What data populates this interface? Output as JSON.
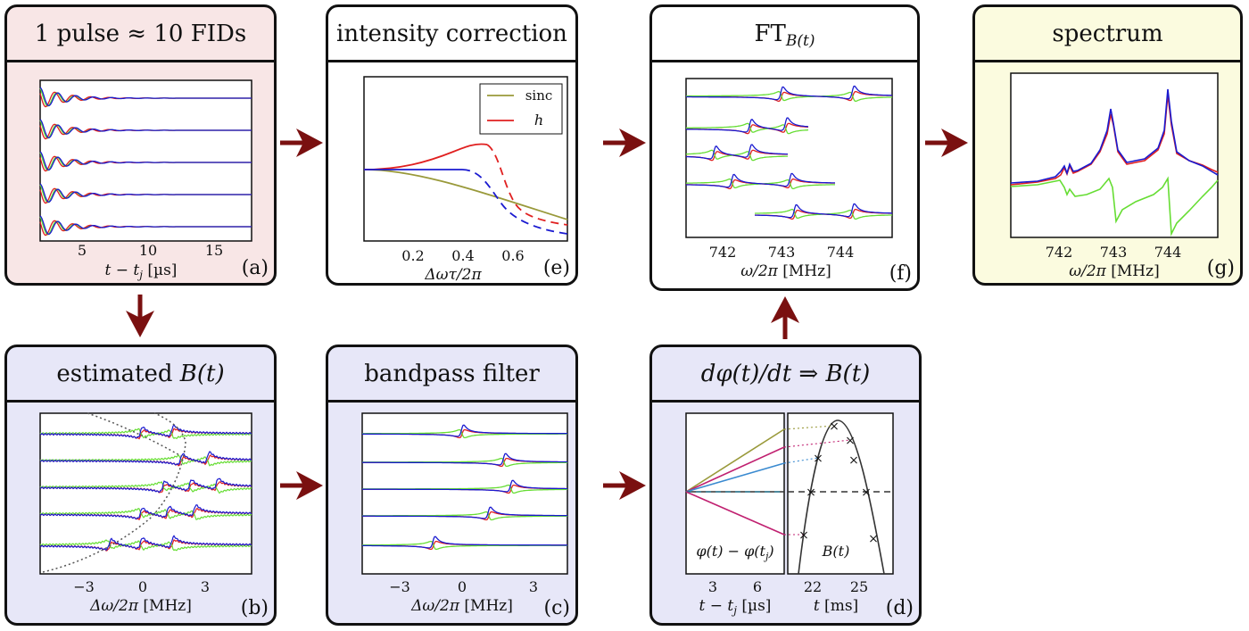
{
  "panels": {
    "a": {
      "title": "1 pulse ≈ 10 FIDs",
      "tag": "(a)",
      "xlabel": "t − t",
      "xlabel_sub": "j",
      "xlabel_unit": " [µs]",
      "ticks": [
        "5",
        "10",
        "15"
      ]
    },
    "e": {
      "title": "intensity correction",
      "tag": "(e)",
      "xlabel": "Δωτ/2π",
      "ticks": [
        "0.2",
        "0.4",
        "0.6"
      ],
      "legend": [
        "sinc",
        "h"
      ]
    },
    "f": {
      "title_main": "FT",
      "title_sub": "B(t)",
      "tag": "(f)",
      "xlabel": "ω/2π",
      "xlabel_unit": " [MHz]",
      "ticks": [
        "742",
        "743",
        "744"
      ]
    },
    "g": {
      "title": "spectrum",
      "tag": "(g)",
      "xlabel": "ω/2π",
      "xlabel_unit": " [MHz]",
      "ticks": [
        "742",
        "743",
        "744"
      ]
    },
    "b": {
      "title_main": "estimated ",
      "title_it": "B(t)",
      "tag": "(b)",
      "xlabel": "Δω/2π",
      "xlabel_unit": " [MHz]",
      "ticks": [
        "−3",
        "0",
        "3"
      ]
    },
    "c": {
      "title": "bandpass filter",
      "tag": "(c)",
      "xlabel": "Δω/2π",
      "xlabel_unit": " [MHz]",
      "ticks": [
        "−3",
        "0",
        "3"
      ]
    },
    "d": {
      "title": "dφ(t)/dt  ⇒  B(t)",
      "tag": "(d)",
      "left_label": "φ(t) − φ(t",
      "left_label_sub": "j",
      "left_label_end": ")",
      "right_label": "B(t)",
      "left_xlabel": "t − t",
      "left_xlabel_sub": "j",
      "left_xlabel_unit": " [µs]",
      "right_xlabel": "t",
      "right_xlabel_unit": " [ms]",
      "left_ticks": [
        "3",
        "6"
      ],
      "right_ticks": [
        "22",
        "25"
      ]
    }
  },
  "colors": {
    "arrow": "#7a1010",
    "red": "#e02020",
    "blue": "#1a1ad0",
    "green": "#66dd33",
    "olive": "#99993a",
    "dark": "#111111"
  }
}
